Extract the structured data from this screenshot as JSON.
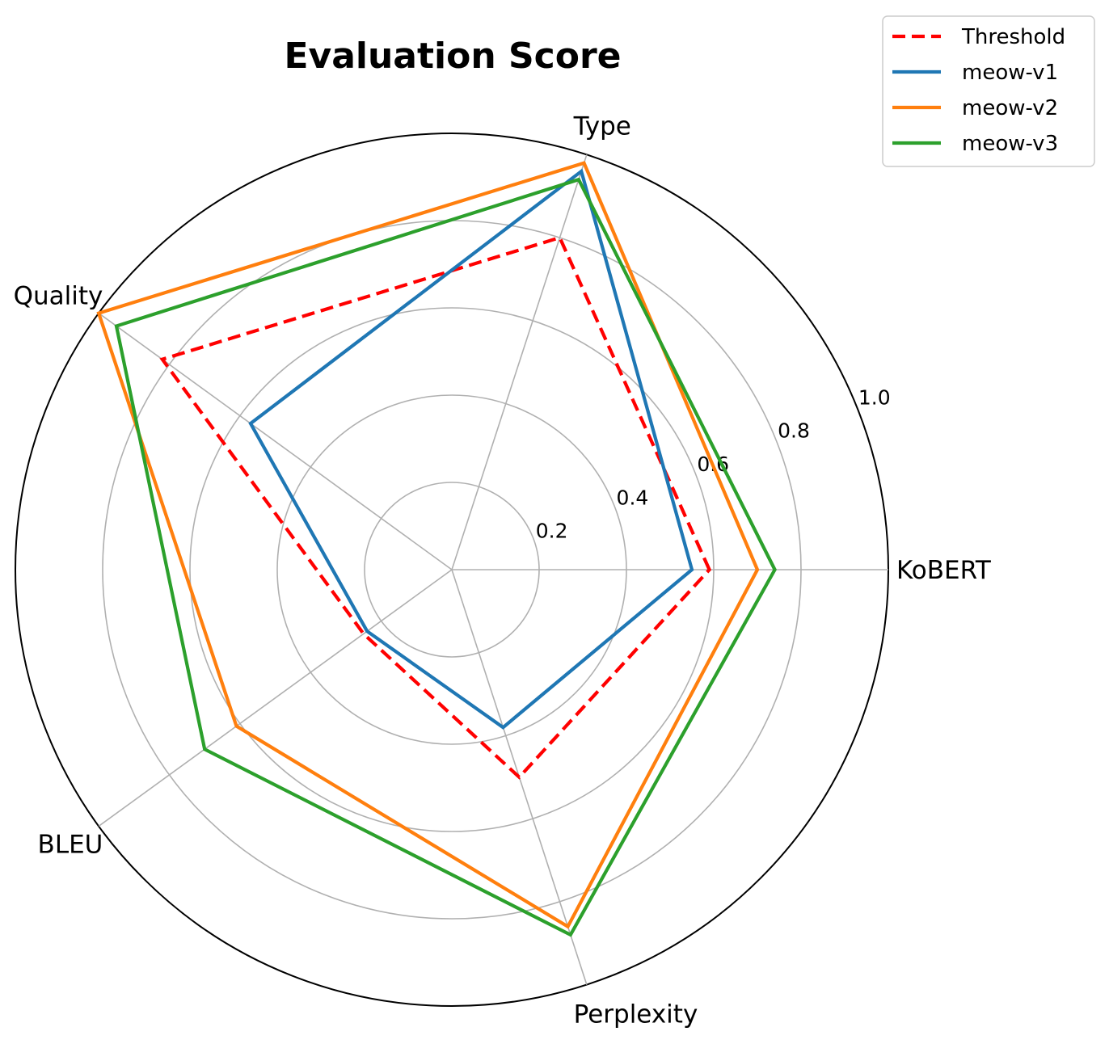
{
  "chart_data": {
    "type": "radar",
    "title": "Evaluation Score",
    "axes": [
      "KoBERT",
      "Type",
      "Quality",
      "BLEU",
      "Perplexity"
    ],
    "rlim": [
      0,
      1.0
    ],
    "rticks": [
      0.2,
      0.4,
      0.6,
      0.8,
      1.0
    ],
    "rtick_labels": [
      "0.2",
      "0.4",
      "0.6",
      "0.8",
      "1.0"
    ],
    "grid": true,
    "legend_position": "top-right",
    "series": [
      {
        "name": "Threshold",
        "values": [
          0.59,
          0.8,
          0.82,
          0.25,
          0.5
        ],
        "color": "#ff0000",
        "style": "dashed"
      },
      {
        "name": "meow-v1",
        "values": [
          0.55,
          0.96,
          0.57,
          0.24,
          0.38
        ],
        "color": "#1f77b4",
        "style": "solid"
      },
      {
        "name": "meow-v2",
        "values": [
          0.7,
          0.98,
          1.0,
          0.61,
          0.86
        ],
        "color": "#ff7f0e",
        "style": "solid"
      },
      {
        "name": "meow-v3",
        "values": [
          0.74,
          0.94,
          0.95,
          0.7,
          0.88
        ],
        "color": "#2ca02c",
        "style": "solid"
      }
    ]
  }
}
